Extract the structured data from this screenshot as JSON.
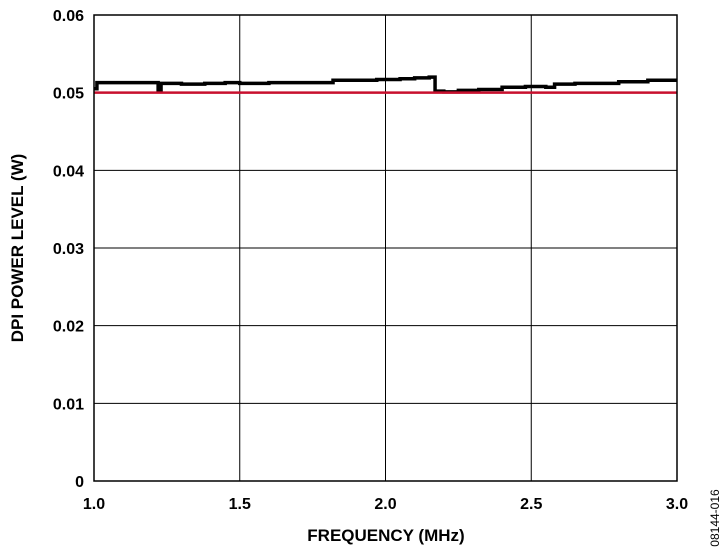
{
  "chart_data": {
    "type": "line",
    "title": "",
    "xlabel": "FREQUENCY (MHz)",
    "ylabel": "DPI POWER LEVEL (W)",
    "xlim": [
      1.0,
      3.0
    ],
    "ylim": [
      0,
      0.06
    ],
    "grid": true,
    "x_ticks": [
      1.0,
      1.5,
      2.0,
      2.5,
      3.0
    ],
    "x_tick_labels": [
      "1.0",
      "1.5",
      "2.0",
      "2.5",
      "3.0"
    ],
    "y_ticks": [
      0,
      0.01,
      0.02,
      0.03,
      0.04,
      0.05,
      0.06
    ],
    "y_tick_labels": [
      "0",
      "0.01",
      "0.02",
      "0.03",
      "0.04",
      "0.05",
      "0.06"
    ],
    "series": [
      {
        "color": "#000000",
        "x": [
          1.0,
          1.01,
          1.01,
          1.22,
          1.22,
          1.23,
          1.23,
          1.3,
          1.3,
          1.38,
          1.38,
          1.45,
          1.45,
          1.5,
          1.5,
          1.6,
          1.6,
          1.82,
          1.82,
          1.97,
          1.97,
          2.05,
          2.05,
          2.1,
          2.1,
          2.15,
          2.15,
          2.17,
          2.17,
          2.2,
          2.2,
          2.25,
          2.25,
          2.32,
          2.32,
          2.4,
          2.4,
          2.48,
          2.48,
          2.55,
          2.55,
          2.58,
          2.58,
          2.65,
          2.65,
          2.8,
          2.8,
          2.9,
          2.9,
          3.0
        ],
        "y": [
          0.0505,
          0.0505,
          0.0513,
          0.0513,
          0.0503,
          0.0503,
          0.0512,
          0.0512,
          0.0511,
          0.0511,
          0.0512,
          0.0512,
          0.0513,
          0.0513,
          0.0512,
          0.0512,
          0.0513,
          0.0513,
          0.0516,
          0.0516,
          0.0517,
          0.0517,
          0.0518,
          0.0518,
          0.0519,
          0.0519,
          0.052,
          0.052,
          0.0502,
          0.0502,
          0.0501,
          0.0501,
          0.0503,
          0.0503,
          0.0504,
          0.0504,
          0.0507,
          0.0507,
          0.0508,
          0.0508,
          0.0507,
          0.0507,
          0.0511,
          0.0511,
          0.0512,
          0.0512,
          0.0514,
          0.0514,
          0.0516,
          0.0516
        ]
      },
      {
        "color": "#c8102e",
        "x": [
          1.0,
          3.0
        ],
        "y": [
          0.05,
          0.05
        ]
      }
    ],
    "figure_code": "08144-016"
  }
}
